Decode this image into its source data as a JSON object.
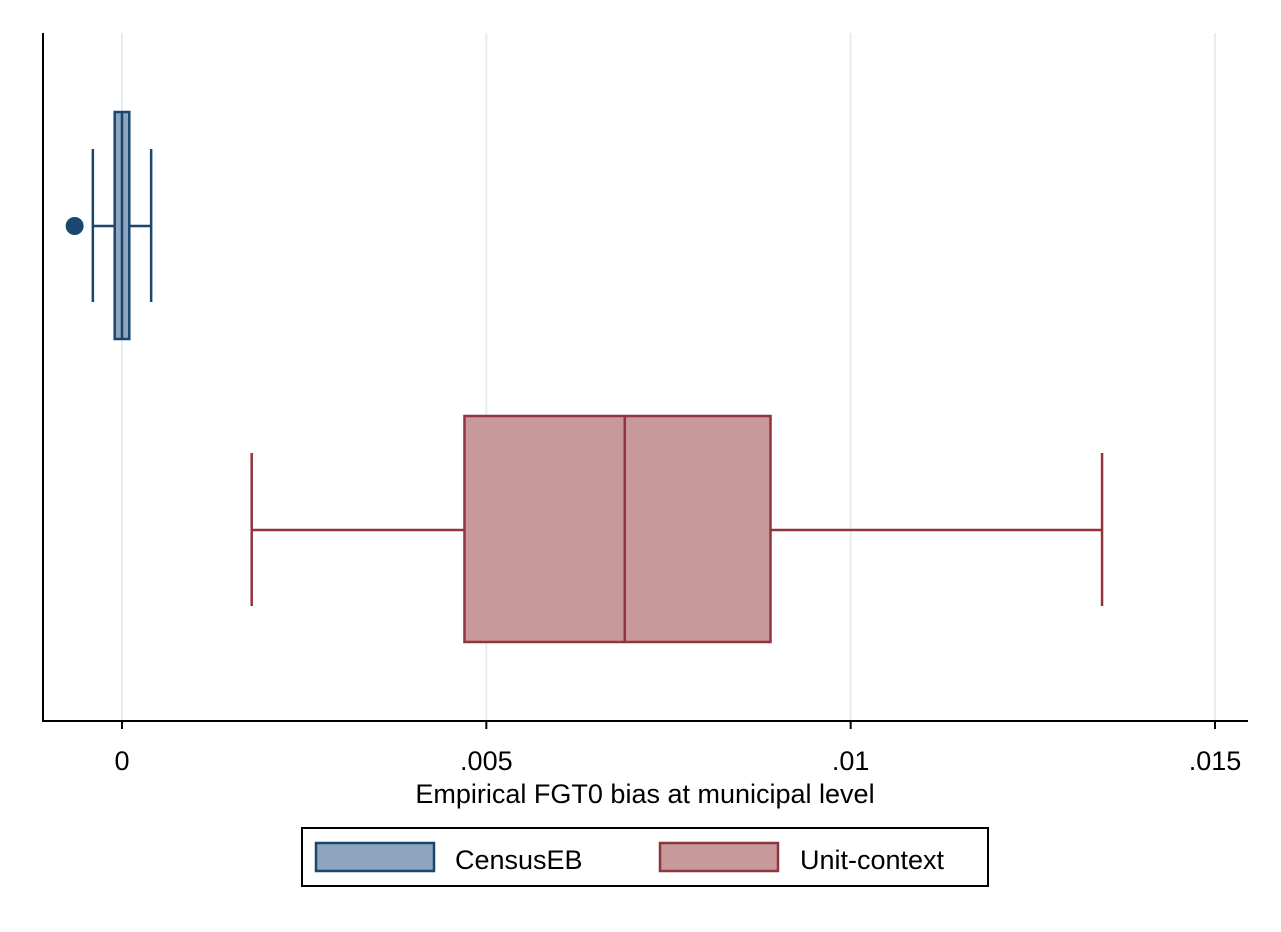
{
  "chart_data": {
    "type": "boxplot",
    "orientation": "horizontal",
    "xlabel": "Empirical FGT0 bias at municipal level",
    "xlim": [
      -0.0011,
      0.0155
    ],
    "xticks": [
      {
        "value": 0,
        "label": "0"
      },
      {
        "value": 0.005,
        "label": ".005"
      },
      {
        "value": 0.01,
        "label": ".01"
      },
      {
        "value": 0.015,
        "label": ".015"
      }
    ],
    "grid": true,
    "legend_position": "bottom",
    "series": [
      {
        "name": "CensusEB",
        "color_fill": "#8ea5bd",
        "color_line": "#1a476f",
        "whisker_low": -0.0004,
        "q1": -0.0001,
        "median": 0.0,
        "q3": 0.0001,
        "whisker_high": 0.0004,
        "outliers": [
          -0.00065
        ]
      },
      {
        "name": "Unit-context",
        "color_fill": "#c7999b",
        "color_line": "#90353b",
        "whisker_low": 0.00178,
        "q1": 0.0047,
        "median": 0.0069,
        "q3": 0.0089,
        "whisker_high": 0.01345,
        "outliers": []
      }
    ]
  },
  "colors": {
    "grid": "#e4eeee",
    "axis": "#000000"
  }
}
